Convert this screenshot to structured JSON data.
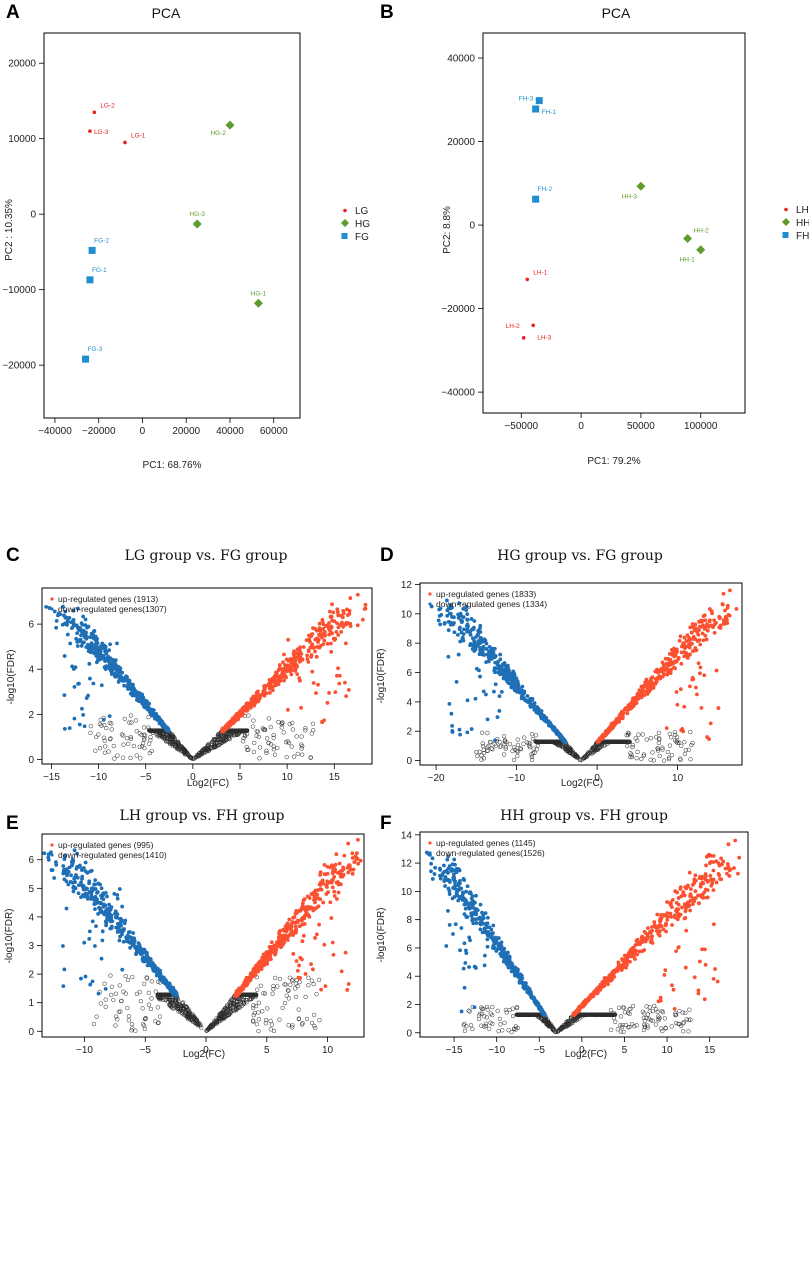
{
  "panels": [
    {
      "id": "A",
      "label": "A"
    },
    {
      "id": "B",
      "label": "B"
    },
    {
      "id": "C",
      "label": "C"
    },
    {
      "id": "D",
      "label": "D"
    },
    {
      "id": "E",
      "label": "E"
    },
    {
      "id": "F",
      "label": "F"
    }
  ],
  "chart_data": [
    {
      "panel": "A",
      "type": "scatter",
      "title": "PCA",
      "xlabel": "PC1: 68.76%",
      "ylabel": "PC2 :  10.35%",
      "xlim": [
        -45000,
        72000
      ],
      "ylim": [
        -27000,
        24000
      ],
      "xticks": [
        -40000,
        -20000,
        0,
        20000,
        40000,
        60000
      ],
      "yticks": [
        -20000,
        -10000,
        0,
        10000,
        20000
      ],
      "legend": "right",
      "series": [
        {
          "name": "LG",
          "color": "#e8221b",
          "marker": "dot",
          "points": [
            {
              "label": "LG-2",
              "x": -22000,
              "y": 13500
            },
            {
              "label": "LG-3",
              "x": -24000,
              "y": 11000
            },
            {
              "label": "LG-1",
              "x": -8000,
              "y": 9500
            }
          ]
        },
        {
          "name": "HG",
          "color": "#5e9c2e",
          "marker": "diamond",
          "points": [
            {
              "label": "HG-2",
              "x": 40000,
              "y": 11800
            },
            {
              "label": "HG-3",
              "x": 25000,
              "y": -1300
            },
            {
              "label": "HG-1",
              "x": 53000,
              "y": -11800
            }
          ]
        },
        {
          "name": "FG",
          "color": "#1f8ed0",
          "marker": "square",
          "points": [
            {
              "label": "FG-2",
              "x": -23000,
              "y": -4800
            },
            {
              "label": "FG-1",
              "x": -24000,
              "y": -8700
            },
            {
              "label": "FG-3",
              "x": -26000,
              "y": -19200
            }
          ]
        }
      ]
    },
    {
      "panel": "B",
      "type": "scatter",
      "title": "PCA",
      "xlabel": "PC1: 79.2%",
      "ylabel": "PC2:  8.8%",
      "xlim": [
        -82000,
        137000
      ],
      "ylim": [
        -45000,
        46000
      ],
      "xticks": [
        -50000,
        0,
        50000,
        100000
      ],
      "yticks": [
        -40000,
        -20000,
        0,
        20000,
        40000
      ],
      "legend": "right",
      "series": [
        {
          "name": "LH",
          "color": "#e8221b",
          "marker": "dot",
          "points": [
            {
              "label": "LH-1",
              "x": -45000,
              "y": -13000
            },
            {
              "label": "LH-2",
              "x": -48000,
              "y": -27000
            },
            {
              "label": "LH-3",
              "x": -40000,
              "y": -24000
            }
          ]
        },
        {
          "name": "HH",
          "color": "#5e9c2e",
          "marker": "diamond",
          "points": [
            {
              "label": "HH-3",
              "x": 50000,
              "y": 9300
            },
            {
              "label": "HH-2",
              "x": 89000,
              "y": -3200
            },
            {
              "label": "HH-1",
              "x": 100000,
              "y": -5900
            }
          ]
        },
        {
          "name": "FH",
          "color": "#1f8ed0",
          "marker": "square",
          "points": [
            {
              "label": "FH-3",
              "x": -35000,
              "y": 29800
            },
            {
              "label": "FH-1",
              "x": -38000,
              "y": 27800
            },
            {
              "label": "FH-2",
              "x": -38000,
              "y": 6200
            }
          ]
        }
      ]
    },
    {
      "panel": "C",
      "type": "scatter",
      "title": "LG group vs. FG group",
      "xlabel": "Log2(FC)",
      "ylabel": "-log10(FDR)",
      "xlim": [
        -16,
        19
      ],
      "ylim": [
        -0.2,
        7.6
      ],
      "xticks": [
        -15,
        -10,
        -5,
        0,
        5,
        10,
        15
      ],
      "yticks": [
        0,
        2,
        4,
        6
      ],
      "vertex": 0,
      "threshold": 1.3,
      "maxLeft": -14.5,
      "maxRight": 17.5,
      "maxY": 7.3,
      "legend": [
        {
          "label": "up-regulated genes (1913)",
          "color": "#fb5131"
        },
        {
          "label": "down-regulated genes(1307)",
          "color": "#1f6fb6"
        }
      ]
    },
    {
      "panel": "D",
      "type": "scatter",
      "title": "HG group vs. FG group",
      "xlabel": "Log2(FC)",
      "ylabel": "-log10(FDR)",
      "xlim": [
        -22,
        18
      ],
      "ylim": [
        -0.3,
        12.1
      ],
      "xticks": [
        -20,
        -10,
        0,
        10
      ],
      "yticks": [
        0,
        2,
        4,
        6,
        8,
        10,
        12
      ],
      "vertex": -2,
      "threshold": 1.3,
      "maxLeft": -19.5,
      "maxRight": 16.5,
      "maxY": 11.6,
      "legend": [
        {
          "label": "up-regulated genes (1833)",
          "color": "#fb5131"
        },
        {
          "label": "down-regulated genes (1334)",
          "color": "#1f6fb6"
        }
      ]
    },
    {
      "panel": "E",
      "type": "scatter",
      "title": "LH group vs.  FH group",
      "xlabel": "Log2(FC)",
      "ylabel": "-log10(FDR)",
      "xlim": [
        -13.5,
        13
      ],
      "ylim": [
        -0.2,
        6.9
      ],
      "xticks": [
        -10,
        -5,
        0,
        5,
        10
      ],
      "yticks": [
        0,
        1,
        2,
        3,
        4,
        5,
        6
      ],
      "vertex": 0,
      "threshold": 1.3,
      "maxLeft": -12.5,
      "maxRight": 12.5,
      "maxY": 6.7,
      "legend": [
        {
          "label": "up-regulated genes (995)",
          "color": "#fb5131"
        },
        {
          "label": "down-regulated genes(1410)",
          "color": "#1f6fb6"
        }
      ]
    },
    {
      "panel": "F",
      "type": "scatter",
      "title": "HH group vs.  FH group",
      "xlabel": "Log2(FC)",
      "ylabel": "-log10(FDR)",
      "xlim": [
        -19,
        19.5
      ],
      "ylim": [
        -0.3,
        14.2
      ],
      "xticks": [
        -15,
        -10,
        -5,
        0,
        5,
        10,
        15
      ],
      "yticks": [
        0,
        2,
        4,
        6,
        8,
        10,
        12,
        14
      ],
      "vertex": -3,
      "threshold": 1.3,
      "maxLeft": -17.5,
      "maxRight": 18,
      "maxY": 13.6,
      "legend": [
        {
          "label": "up-regulated genes (1145)",
          "color": "#fb5131"
        },
        {
          "label": "down-regulated genes(1526)",
          "color": "#1f6fb6"
        }
      ]
    }
  ]
}
